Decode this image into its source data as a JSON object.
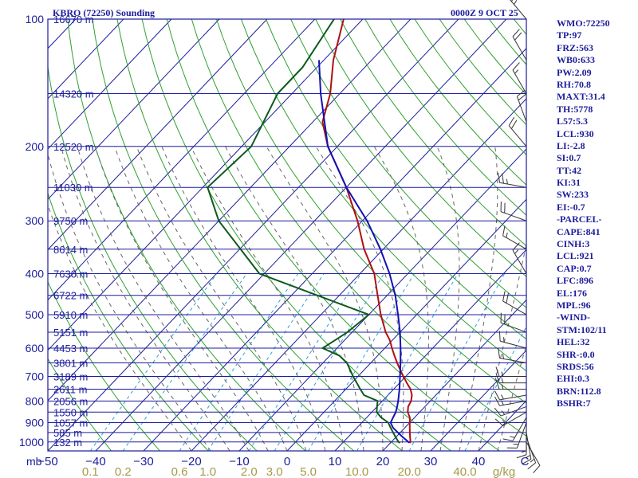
{
  "header": {
    "station": "KBRO (72250) Sounding",
    "time": "0000Z  9 OCT 25"
  },
  "indices": [
    "WMO:72250",
    "TP:97",
    "FRZ:563",
    "WB0:633",
    "PW:2.09",
    "RH:70.8",
    "MAXT:31.4",
    "TH:5778",
    "L57:5.3",
    "LCL:930",
    "LI:-2.8",
    "SI:0.7",
    "TT:42",
    "KI:31",
    "SW:233",
    "EI:-0.7",
    "-PARCEL-",
    "CAPE:841",
    "CINH:3",
    "LCL:921",
    "CAP:0.7",
    "LFC:896",
    "EL:176",
    "MPL:96",
    "-WIND-",
    "STM:102/11",
    "HEL:32",
    "SHR-:0.0",
    "SRDS:56",
    "EHI:0.3",
    "BRN:112.8",
    "BSHR:7"
  ],
  "colors": {
    "axis": "#1c1c9c",
    "isotherm": "#1c1c9c",
    "isobar": "#1c1c9c",
    "dry_adiabat": "#2fa02f",
    "moist_adiabat": "#666666",
    "mixing_ratio": "#2ea0d8",
    "temperature": "#b01010",
    "dewpoint": "#0b5a1a",
    "parcel": "#1212b4",
    "wind_barb": "#333333",
    "mix_label": "#a59a4a"
  },
  "chart_data": {
    "type": "line",
    "title": "KBRO (72250) Sounding",
    "diagram": "skew-T log-P",
    "ylabel": "mb",
    "xlabel": "",
    "pressure_levels": [
      100,
      200,
      300,
      400,
      500,
      600,
      700,
      800,
      900,
      1000
    ],
    "pressure_labels": [
      "100",
      "200",
      "300",
      "400",
      "500",
      "600",
      "700",
      "800",
      "900",
      "1000"
    ],
    "temperature_ticks": [
      -50,
      -40,
      -30,
      -20,
      -10,
      0,
      10,
      20,
      30,
      40
    ],
    "temperature_labels": [
      "−50",
      "−40",
      "−30",
      "−20",
      "−10",
      "0",
      "10",
      "20",
      "30",
      "40"
    ],
    "xunit_label": "C",
    "height_labels": [
      {
        "p": 100,
        "h": "16670 m"
      },
      {
        "p": 150,
        "h": "14320 m"
      },
      {
        "p": 200,
        "h": "12520 m"
      },
      {
        "p": 250,
        "h": "11030 m"
      },
      {
        "p": 300,
        "h": "9750 m"
      },
      {
        "p": 350,
        "h": "8614 m"
      },
      {
        "p": 400,
        "h": "7630 m"
      },
      {
        "p": 450,
        "h": "6722 m"
      },
      {
        "p": 500,
        "h": "5910 m"
      },
      {
        "p": 550,
        "h": "5151 m"
      },
      {
        "p": 600,
        "h": "4453 m"
      },
      {
        "p": 650,
        "h": "3801 m"
      },
      {
        "p": 700,
        "h": "3189 m"
      },
      {
        "p": 750,
        "h": "2611 m"
      },
      {
        "p": 800,
        "h": "2056 m"
      },
      {
        "p": 850,
        "h": "1550 m"
      },
      {
        "p": 900,
        "h": "1057 m"
      },
      {
        "p": 950,
        "h": "585 m"
      },
      {
        "p": 1000,
        "h": "132 m"
      }
    ],
    "mixing_ratio_labels": [
      "0.1",
      "0.2",
      "0.6",
      "1.0",
      "2.0",
      "3.0",
      "5.0",
      "10.0",
      "20.0",
      "40.0"
    ],
    "mixing_ratio_values": [
      0.1,
      0.2,
      0.6,
      1.0,
      2.0,
      3.0,
      5.0,
      10.0,
      20.0,
      40.0
    ],
    "mixing_unit_label": "g/kg",
    "series": [
      {
        "p": [
          1005,
          1000,
          975,
          950,
          925,
          900,
          875,
          850,
          825,
          800,
          775,
          750,
          725,
          700,
          675,
          650,
          625,
          600,
          575,
          550,
          500,
          450,
          400,
          350,
          300,
          250,
          200,
          175,
          150,
          125,
          100
        ],
        "values": [
          24,
          24,
          23,
          22,
          21,
          20,
          19,
          17.5,
          16.5,
          16,
          15,
          13.5,
          11.5,
          9.5,
          7.5,
          5.5,
          3.5,
          1.5,
          -0.5,
          -3,
          -7.5,
          -12,
          -17,
          -24,
          -31,
          -40,
          -52,
          -58,
          -62,
          -68,
          -74
        ]
      },
      {
        "p": [
          1005,
          1000,
          975,
          950,
          925,
          900,
          875,
          850,
          825,
          800,
          775,
          750,
          700,
          650,
          625,
          600,
          575,
          550,
          500,
          400,
          300,
          250,
          200,
          150,
          130,
          100
        ],
        "values": [
          22,
          21.5,
          20,
          18.5,
          17,
          15.5,
          13,
          11,
          10,
          9,
          5,
          3,
          -1,
          -5,
          -8,
          -13,
          -12,
          -11,
          -10,
          -41,
          -60,
          -69,
          -68,
          -73,
          -73,
          -76
        ]
      },
      {
        "p": [
          1005,
          975,
          950,
          925,
          900,
          875,
          850,
          825,
          800,
          750,
          700,
          650,
          600,
          550,
          500,
          450,
          400,
          350,
          300,
          250,
          200,
          150,
          125
        ],
        "values": [
          24,
          21.5,
          19.5,
          17.5,
          16,
          15.5,
          15,
          14.2,
          13.3,
          11.2,
          8.8,
          6.2,
          3.3,
          0,
          -3.9,
          -8.3,
          -13.8,
          -20.6,
          -29,
          -40,
          -52,
          -64,
          -71
        ]
      }
    ],
    "wind_barbs": [
      {
        "p": 1000,
        "dir": 150,
        "spd": 10
      },
      {
        "p": 975,
        "dir": 160,
        "spd": 15
      },
      {
        "p": 950,
        "dir": 170,
        "spd": 15
      },
      {
        "p": 925,
        "dir": 180,
        "spd": 15
      },
      {
        "p": 900,
        "dir": 200,
        "spd": 15
      },
      {
        "p": 875,
        "dir": 210,
        "spd": 15
      },
      {
        "p": 850,
        "dir": 240,
        "spd": 15
      },
      {
        "p": 825,
        "dir": 250,
        "spd": 15
      },
      {
        "p": 800,
        "dir": 260,
        "spd": 15
      },
      {
        "p": 775,
        "dir": 260,
        "spd": 15
      },
      {
        "p": 750,
        "dir": 270,
        "spd": 15
      },
      {
        "p": 725,
        "dir": 270,
        "spd": 15
      },
      {
        "p": 700,
        "dir": 270,
        "spd": 15
      },
      {
        "p": 650,
        "dir": 280,
        "spd": 15
      },
      {
        "p": 600,
        "dir": 285,
        "spd": 15
      },
      {
        "p": 550,
        "dir": 290,
        "spd": 20
      },
      {
        "p": 500,
        "dir": 300,
        "spd": 20
      },
      {
        "p": 400,
        "dir": 330,
        "spd": 15
      },
      {
        "p": 350,
        "dir": 300,
        "spd": 15
      },
      {
        "p": 300,
        "dir": 290,
        "spd": 20
      },
      {
        "p": 250,
        "dir": 280,
        "spd": 25
      },
      {
        "p": 200,
        "dir": 320,
        "spd": 20
      },
      {
        "p": 175,
        "dir": 340,
        "spd": 20
      },
      {
        "p": 150,
        "dir": 330,
        "spd": 15
      },
      {
        "p": 125,
        "dir": 330,
        "spd": 20
      },
      {
        "p": 100,
        "dir": 320,
        "spd": 25
      }
    ],
    "ylim": [
      1050,
      100
    ],
    "xlim": [
      -50,
      50
    ],
    "grid": true,
    "legend": "none"
  }
}
